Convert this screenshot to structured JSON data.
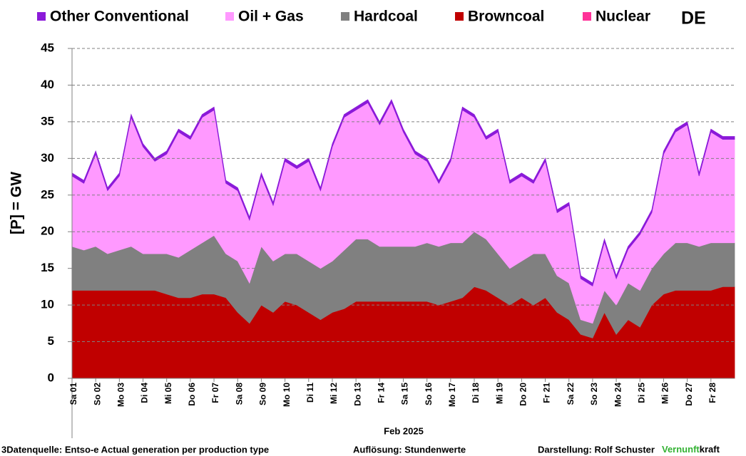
{
  "chart_data": {
    "type": "stacked_area",
    "annotation": "DE",
    "y_label": "[P] =  GW",
    "x_label": "Feb 2025",
    "footer": {
      "source": "3Datenquelle: Entso-e  Actual generation per production type",
      "resolution": "Auflösung: Stundenwerte",
      "author": "Darstellung:  Rolf Schuster",
      "brand": [
        "Vernunft",
        "kraft"
      ]
    },
    "x": [
      1,
      1.5,
      2,
      2.5,
      3,
      3.5,
      4,
      4.5,
      5,
      5.5,
      6,
      6.5,
      7,
      7.5,
      8,
      8.5,
      9,
      9.5,
      10,
      10.5,
      11,
      11.5,
      12,
      12.5,
      13,
      13.5,
      14,
      14.5,
      15,
      15.5,
      16,
      16.5,
      17,
      17.5,
      18,
      18.5,
      19,
      19.5,
      20,
      20.5,
      21,
      21.5,
      22,
      22.5,
      23,
      23.5,
      24,
      24.5,
      25,
      25.5,
      26,
      26.5,
      27,
      27.5,
      28,
      28.5,
      29
    ],
    "xlim": [
      1,
      29
    ],
    "xticks": [
      {
        "value": 1,
        "label": "Sa 01"
      },
      {
        "value": 2,
        "label": "So 02"
      },
      {
        "value": 3,
        "label": "Mo 03"
      },
      {
        "value": 4,
        "label": "Di 04"
      },
      {
        "value": 5,
        "label": "Mi 05"
      },
      {
        "value": 6,
        "label": "Do 06"
      },
      {
        "value": 7,
        "label": "Fr 07"
      },
      {
        "value": 8,
        "label": "Sa 08"
      },
      {
        "value": 9,
        "label": "So 09"
      },
      {
        "value": 10,
        "label": "Mo 10"
      },
      {
        "value": 11,
        "label": "Di 11"
      },
      {
        "value": 12,
        "label": "Mi 12"
      },
      {
        "value": 13,
        "label": "Do 13"
      },
      {
        "value": 14,
        "label": "Fr 14"
      },
      {
        "value": 15,
        "label": "Sa 15"
      },
      {
        "value": 16,
        "label": "So 16"
      },
      {
        "value": 17,
        "label": "Mo 17"
      },
      {
        "value": 18,
        "label": "Di 18"
      },
      {
        "value": 19,
        "label": "Mi 19"
      },
      {
        "value": 20,
        "label": "Do 20"
      },
      {
        "value": 21,
        "label": "Fr 21"
      },
      {
        "value": 22,
        "label": "Sa 22"
      },
      {
        "value": 23,
        "label": "So 23"
      },
      {
        "value": 24,
        "label": "Mo 24"
      },
      {
        "value": 25,
        "label": "Di 25"
      },
      {
        "value": 26,
        "label": "Mi 26"
      },
      {
        "value": 27,
        "label": "Do 27"
      },
      {
        "value": 28,
        "label": "Fr 28"
      }
    ],
    "ylim": [
      0,
      45
    ],
    "yticks": [
      0,
      5,
      10,
      15,
      20,
      25,
      30,
      35,
      40,
      45
    ],
    "grid": true,
    "series": [
      {
        "name": "Other Conventional",
        "color": "#8b1ad9",
        "values": [
          0.4,
          0.4,
          0.4,
          0.4,
          0.4,
          0.4,
          0.4,
          0.4,
          0.4,
          0.4,
          0.4,
          0.4,
          0.4,
          0.4,
          0.4,
          0.4,
          0.4,
          0.4,
          0.4,
          0.4,
          0.4,
          0.4,
          0.4,
          0.4,
          0.4,
          0.4,
          0.4,
          0.4,
          0.4,
          0.4,
          0.4,
          0.4,
          0.4,
          0.4,
          0.4,
          0.4,
          0.4,
          0.4,
          0.4,
          0.4,
          0.4,
          0.4,
          0.4,
          0.4,
          0.4,
          0.4,
          0.4,
          0.4,
          0.4,
          0.4,
          0.4,
          0.4,
          0.4,
          0.4,
          0.4,
          0.4,
          0.4
        ]
      },
      {
        "name": "Oil + Gas",
        "color": "#ff99ff",
        "values": [
          9.6,
          9.1,
          12.6,
          8.6,
          10.1,
          17.6,
          14.6,
          12.6,
          13.6,
          17.1,
          15.1,
          17.1,
          17.1,
          9.6,
          9.6,
          8.6,
          9.6,
          7.6,
          12.6,
          11.6,
          13.6,
          10.6,
          15.6,
          18.1,
          17.6,
          18.6,
          16.6,
          19.6,
          15.6,
          12.6,
          11.1,
          8.6,
          11.1,
          18.1,
          15.6,
          13.6,
          16.6,
          11.6,
          11.6,
          9.6,
          12.6,
          8.6,
          10.6,
          5.6,
          5.1,
          6.6,
          3.6,
          4.6,
          7.6,
          7.6,
          13.6,
          15.1,
          16.1,
          9.6,
          15.1,
          14.1,
          14.1
        ]
      },
      {
        "name": "Hardcoal",
        "color": "#808080",
        "values": [
          6,
          5.5,
          6,
          5,
          5.5,
          6,
          5,
          5,
          5.5,
          5.5,
          6.5,
          7,
          8,
          6,
          7,
          5.5,
          8,
          7,
          6.5,
          7,
          7,
          7,
          7,
          8,
          8.5,
          8.5,
          7.5,
          7.5,
          7.5,
          7.5,
          8,
          8,
          8,
          7.5,
          7.5,
          7,
          6,
          5,
          5,
          7,
          6,
          5,
          5,
          2,
          2,
          3,
          4,
          5,
          5,
          5,
          5.5,
          6.5,
          6.5,
          6,
          6.5,
          6,
          6
        ]
      },
      {
        "name": "Browncoal",
        "color": "#c00000",
        "values": [
          12,
          12,
          12,
          12,
          12,
          12,
          12,
          12,
          11.5,
          11,
          11,
          11.5,
          11.5,
          11,
          9,
          7.5,
          10,
          9,
          10.5,
          10,
          9,
          8,
          9,
          9.5,
          10.5,
          10.5,
          10.5,
          10.5,
          10.5,
          10.5,
          10.5,
          10,
          10.5,
          11,
          12.5,
          12,
          11,
          10,
          11,
          10,
          11,
          9,
          8,
          6,
          5.5,
          9,
          6,
          8,
          7,
          10,
          11.5,
          12,
          12,
          12,
          12,
          12.5,
          12.5
        ]
      },
      {
        "name": "Nuclear",
        "color": "#ff3399",
        "values": [
          0,
          0,
          0,
          0,
          0,
          0,
          0,
          0,
          0,
          0,
          0,
          0,
          0,
          0,
          0,
          0,
          0,
          0,
          0,
          0,
          0,
          0,
          0,
          0,
          0,
          0,
          0,
          0,
          0,
          0,
          0,
          0,
          0,
          0,
          0,
          0,
          0,
          0,
          0,
          0,
          0,
          0,
          0,
          0,
          0,
          0,
          0,
          0,
          0,
          0,
          0,
          0,
          0,
          0,
          0,
          0,
          0
        ]
      }
    ]
  }
}
